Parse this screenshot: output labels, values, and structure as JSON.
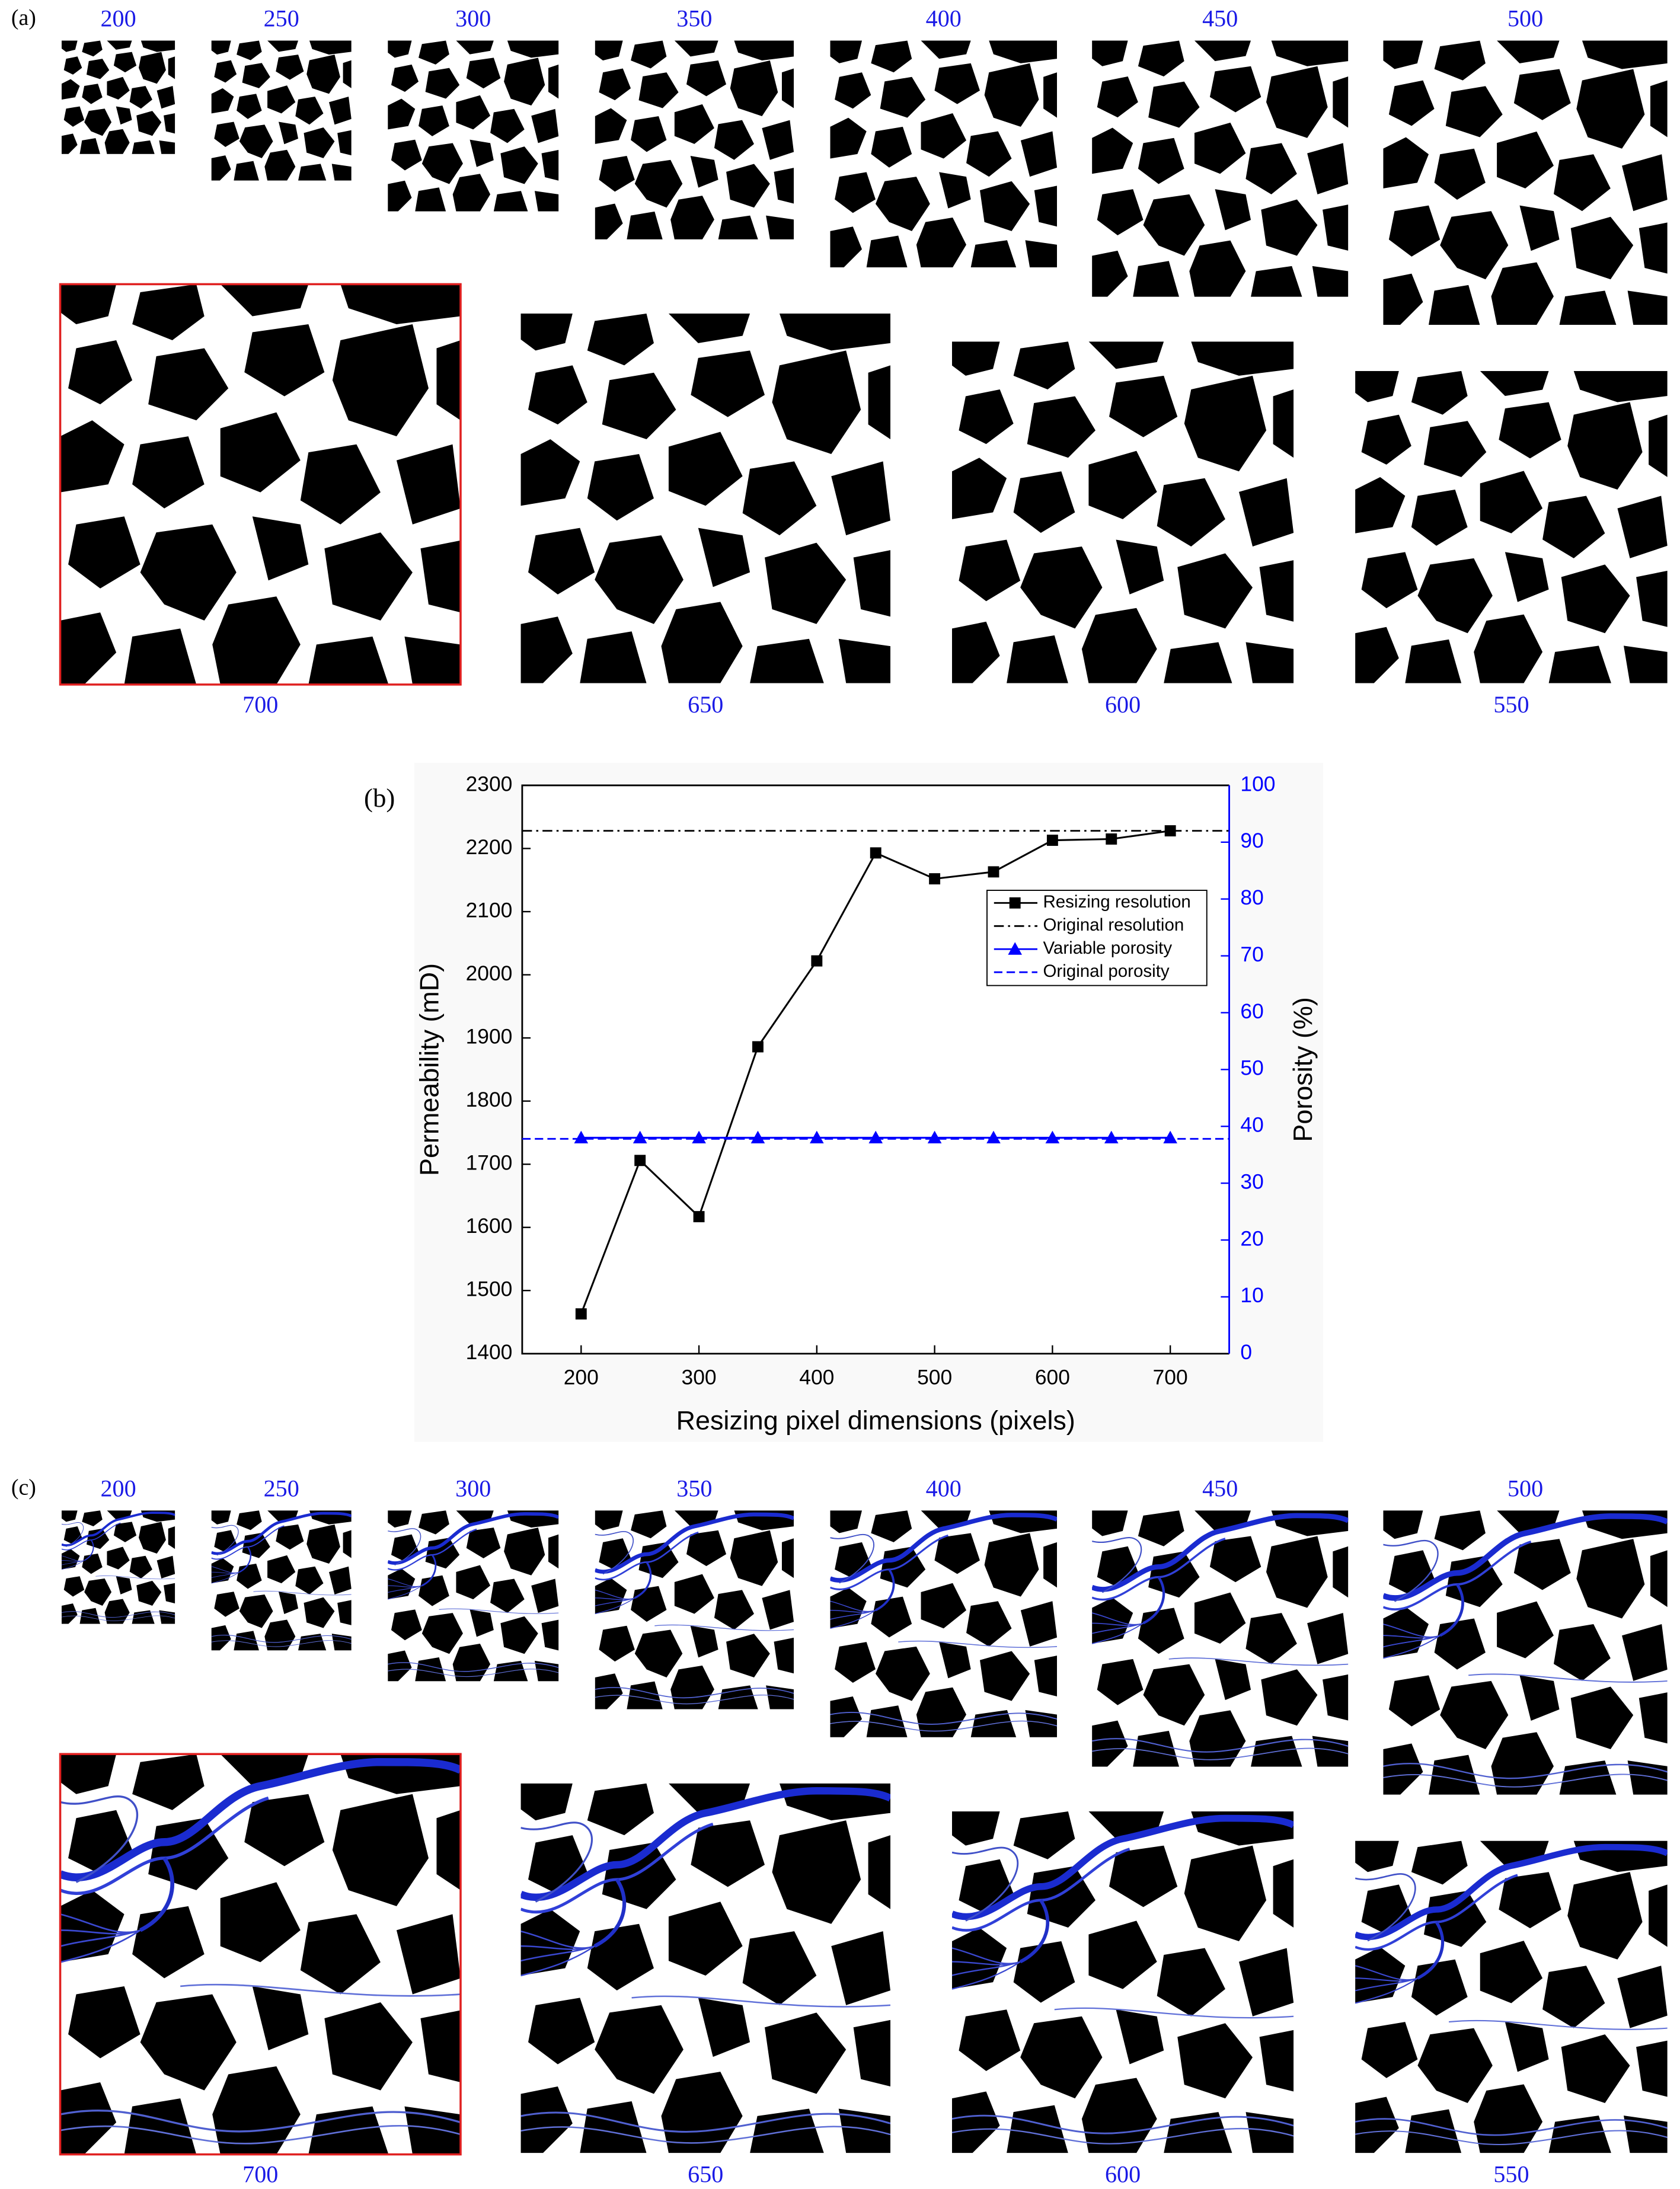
{
  "panel_labels": [
    "(a)",
    "(b)",
    "(c)"
  ],
  "panel_a": {
    "labels": [
      "200",
      "250",
      "300",
      "350",
      "400",
      "450",
      "500",
      "700",
      "650",
      "600",
      "550"
    ]
  },
  "panel_c": {
    "labels": [
      "200",
      "250",
      "300",
      "350",
      "400",
      "450",
      "500",
      "700",
      "650",
      "600",
      "550"
    ]
  },
  "chart_data": {
    "type": "line",
    "x_label": "Resizing pixel dimensions (pixels)",
    "y_label": "Permeability (mD)",
    "y2_label": "Porosity (%)",
    "x": [
      200,
      250,
      300,
      350,
      400,
      450,
      500,
      550,
      600,
      650,
      700
    ],
    "xlim": [
      150,
      750
    ],
    "xticks": [
      200,
      300,
      400,
      500,
      600,
      700
    ],
    "ylim": [
      1400,
      2300
    ],
    "yticks": [
      1400,
      1500,
      1600,
      1700,
      1800,
      1900,
      2000,
      2100,
      2200,
      2300
    ],
    "y2lim": [
      0,
      100
    ],
    "y2ticks": [
      0,
      10,
      20,
      30,
      40,
      50,
      60,
      70,
      80,
      90,
      100
    ],
    "legend": "upper right",
    "series": [
      {
        "name": "Resizing resolution",
        "color": "#000000",
        "marker": "square",
        "values": [
          1463,
          1706,
          1617,
          1886,
          2022,
          2193,
          2152,
          2163,
          2213,
          2215,
          2228
        ]
      },
      {
        "name": "Original resolution",
        "color": "#000000",
        "style": "dashdot",
        "hline": 2228
      },
      {
        "name": "Variable porosity",
        "color": "#0000ff",
        "marker": "triangle",
        "axis": "y2",
        "values": [
          38,
          38,
          38,
          38,
          38,
          38,
          38,
          38,
          38,
          38,
          38
        ]
      },
      {
        "name": "Original porosity",
        "color": "#0000ff",
        "style": "dashed",
        "axis": "y2",
        "hline": 37.8
      }
    ]
  }
}
